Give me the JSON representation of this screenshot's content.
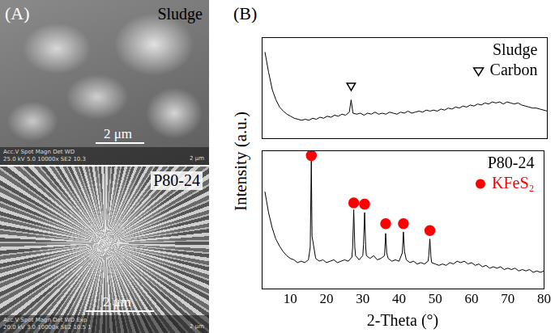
{
  "panel_a": {
    "label": "(A)",
    "images": [
      {
        "title": "Sludge",
        "scale_bar": "2 μm",
        "info_header": "Acc.V  Spot Magn    Det  WD",
        "info_values": "25.0 kV 5.0  10000x  SE2  10.3",
        "info_scale": "2 μm"
      },
      {
        "title": "P80-24",
        "scale_bar": "2 μm",
        "info_header": "Acc.V  Spot Magn    Det  WD  Exp",
        "info_values": "20.0 kV 3.0  10000x  SE2  10.5  1",
        "info_scale": "2 μm"
      }
    ]
  },
  "panel_b_label": "(B)",
  "ylabel": "Intensity (a.u.)",
  "chart_data": [
    {
      "type": "line",
      "title": "Sludge",
      "legend": "top-right",
      "grid": false,
      "tick_labels": false,
      "xlim": [
        2,
        80
      ],
      "ylim": [
        0,
        100
      ],
      "x": [
        3,
        4,
        5,
        6,
        7,
        8,
        9,
        10,
        11,
        12,
        13,
        14,
        15,
        16,
        17,
        18,
        19,
        20,
        21,
        22,
        23,
        24,
        25,
        26,
        26.5,
        27,
        28,
        29,
        30,
        31,
        32,
        33,
        34,
        35,
        36,
        37,
        38,
        39,
        40,
        41,
        42,
        43,
        44,
        45,
        46,
        47,
        48,
        49,
        50,
        51,
        52,
        53,
        54,
        55,
        56,
        57,
        58,
        59,
        60,
        61,
        62,
        63,
        64,
        65,
        66,
        67,
        68,
        69,
        70,
        71,
        72,
        73,
        74,
        75,
        76,
        77,
        78,
        79,
        80
      ],
      "series": [
        {
          "color": "#000000",
          "values": [
            85,
            65,
            48,
            38,
            31,
            27,
            24,
            22,
            20,
            19,
            18,
            19,
            18,
            20,
            19,
            21,
            20,
            22,
            21,
            23,
            22,
            24,
            23,
            26,
            38,
            25,
            24,
            25,
            23,
            25,
            24,
            26,
            24,
            25,
            24,
            26,
            25,
            24,
            26,
            25,
            27,
            25,
            26,
            27,
            26,
            28,
            27,
            28,
            27,
            29,
            28,
            30,
            29,
            31,
            30,
            32,
            31,
            33,
            32,
            34,
            33,
            35,
            34,
            36,
            35,
            36,
            34,
            36,
            35,
            34,
            35,
            33,
            32,
            31,
            30,
            30,
            29,
            28,
            27
          ]
        },
        {
          "name": "Carbon",
          "type": "scatter",
          "marker": "triangle-down-open",
          "color": "#000000",
          "x": [
            26.5
          ],
          "values": [
            52
          ]
        }
      ]
    },
    {
      "type": "line",
      "title": "P80-24",
      "legend": "top-right",
      "grid": false,
      "tick_labels": "x",
      "xlabel": "2-Theta (°)",
      "xlim": [
        2,
        80
      ],
      "xticks": [
        10,
        20,
        30,
        40,
        50,
        60,
        70,
        80
      ],
      "ylim": [
        0,
        100
      ],
      "x": [
        3,
        4,
        5,
        6,
        7,
        8,
        9,
        10,
        11,
        12,
        13,
        14,
        15,
        15.5,
        15.8,
        16,
        17,
        18,
        19,
        20,
        21,
        22,
        23,
        24,
        25,
        26,
        27,
        27.2,
        27.5,
        27.8,
        28,
        29,
        30,
        30.2,
        30.5,
        30.8,
        31,
        32,
        33,
        34,
        35,
        36,
        36.3,
        36.6,
        37,
        38,
        39,
        40,
        40.9,
        41.2,
        41.5,
        42,
        43,
        44,
        45,
        46,
        47,
        48,
        48.2,
        48.5,
        48.8,
        49,
        50,
        51,
        52,
        53,
        54,
        55,
        56,
        57,
        58,
        59,
        60,
        61,
        62,
        63,
        64,
        65,
        66,
        67,
        68,
        69,
        70,
        71,
        72,
        73,
        74,
        75,
        76,
        77,
        78,
        79,
        80
      ],
      "series": [
        {
          "color": "#000000",
          "values": [
            70,
            55,
            44,
            36,
            31,
            27,
            24,
            22,
            21,
            19,
            20,
            19,
            21,
            30,
            92,
            38,
            22,
            20,
            21,
            19,
            20,
            21,
            19,
            20,
            21,
            20,
            23,
            30,
            57,
            30,
            24,
            21,
            24,
            32,
            55,
            30,
            24,
            22,
            24,
            21,
            22,
            24,
            40,
            26,
            22,
            20,
            21,
            20,
            26,
            41,
            27,
            21,
            19,
            20,
            18,
            19,
            18,
            20,
            24,
            36,
            23,
            19,
            18,
            17,
            18,
            17,
            19,
            18,
            20,
            19,
            20,
            18,
            19,
            17,
            18,
            16,
            17,
            15,
            16,
            15,
            16,
            14,
            15,
            14,
            15,
            13,
            14,
            13,
            14,
            12,
            13,
            12,
            13
          ]
        },
        {
          "name": "KFeS₂",
          "type": "scatter",
          "marker": "circle",
          "color": "#ff0000",
          "x": [
            15.8,
            27.5,
            30.5,
            36.3,
            41.2,
            48.5
          ],
          "values": [
            96,
            62,
            61,
            47,
            47,
            42
          ]
        }
      ]
    }
  ]
}
